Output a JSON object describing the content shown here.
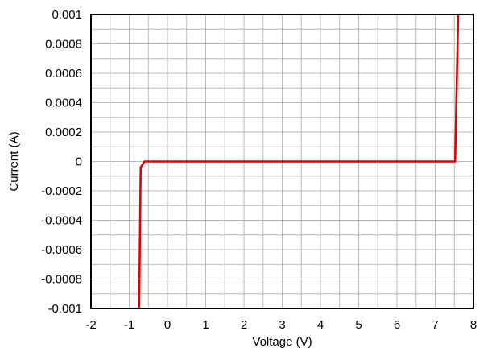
{
  "chart_data": {
    "type": "line",
    "title": "",
    "xlabel": "Voltage (V)",
    "ylabel": "Current (A)",
    "xlim": [
      -2,
      8
    ],
    "ylim": [
      -0.001,
      0.001
    ],
    "x_ticks": [
      "-2",
      "-1",
      "0",
      "1",
      "2",
      "3",
      "4",
      "5",
      "6",
      "7",
      "8"
    ],
    "y_ticks": [
      "-0.001",
      "-0.0008",
      "-0.0006",
      "-0.0004",
      "-0.0002",
      "0",
      "0.0002",
      "0.0004",
      "0.0006",
      "0.0008",
      "0.001"
    ],
    "x_tick_values": [
      -2,
      -1,
      0,
      1,
      2,
      3,
      4,
      5,
      6,
      7,
      8
    ],
    "y_tick_values": [
      -0.001,
      -0.0008,
      -0.0006,
      -0.0004,
      -0.0002,
      0,
      0.0002,
      0.0004,
      0.0006,
      0.0008,
      0.001
    ],
    "x_minor_step": 0.5,
    "y_minor_step": 0.0001,
    "grid": true,
    "legend": "none",
    "series": [
      {
        "color": "#e00000",
        "x": [
          -0.74,
          -0.7,
          -0.6,
          7.52,
          7.6
        ],
        "y": [
          -0.001,
          -4e-05,
          0,
          0,
          0.001
        ]
      }
    ],
    "colors": {
      "grid": "#b9b9b9",
      "frame": "#000000",
      "line": "#e00000"
    }
  }
}
